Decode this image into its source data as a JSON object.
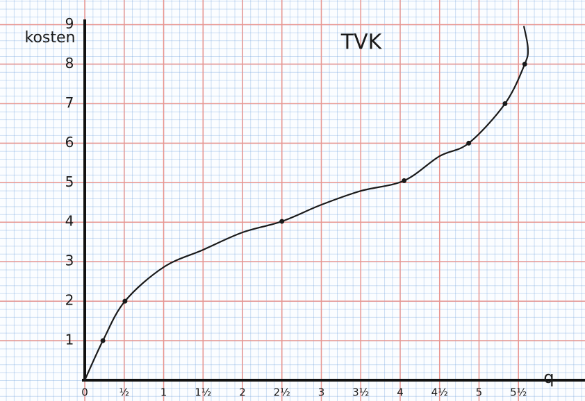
{
  "chart_data": {
    "type": "line",
    "title": "TVK",
    "y_label": "kosten",
    "x_label": "q",
    "series": [
      {
        "color": "#1a1a1a",
        "x": [
          0,
          0.23,
          0.51,
          1.0,
          1.5,
          2.0,
          2.5,
          3.0,
          3.5,
          4.05,
          4.5,
          4.87,
          5.33,
          5.58,
          5.62,
          5.57
        ],
        "values": [
          0,
          1,
          2,
          2.86,
          3.3,
          3.74,
          4.02,
          4.44,
          4.79,
          5.05,
          5.67,
          6.0,
          7.0,
          8.0,
          8.4,
          8.95
        ]
      }
    ],
    "points": {
      "color": "#1a1a1a",
      "x": [
        0.23,
        0.51,
        2.5,
        4.05,
        4.87,
        5.33,
        5.58
      ],
      "values": [
        1,
        2,
        4.02,
        5.05,
        6.0,
        7.0,
        8.0
      ]
    },
    "xlim": [
      0,
      6.3
    ],
    "ylim": [
      0,
      9.5
    ],
    "xticks": [
      0,
      {
        "value": 0.5,
        "label": "½"
      },
      1,
      {
        "value": 1.5,
        "label": "1½"
      },
      2,
      {
        "value": 2.5,
        "label": "2½"
      },
      3,
      {
        "value": 3.5,
        "label": "3½"
      },
      4,
      {
        "value": 4.5,
        "label": "4½"
      },
      5,
      {
        "value": 5.5,
        "label": "5½"
      }
    ],
    "yticks": [
      1,
      2,
      3,
      4,
      5,
      6,
      7,
      8,
      9
    ],
    "grid": true,
    "grid_color": "#e9958f"
  }
}
